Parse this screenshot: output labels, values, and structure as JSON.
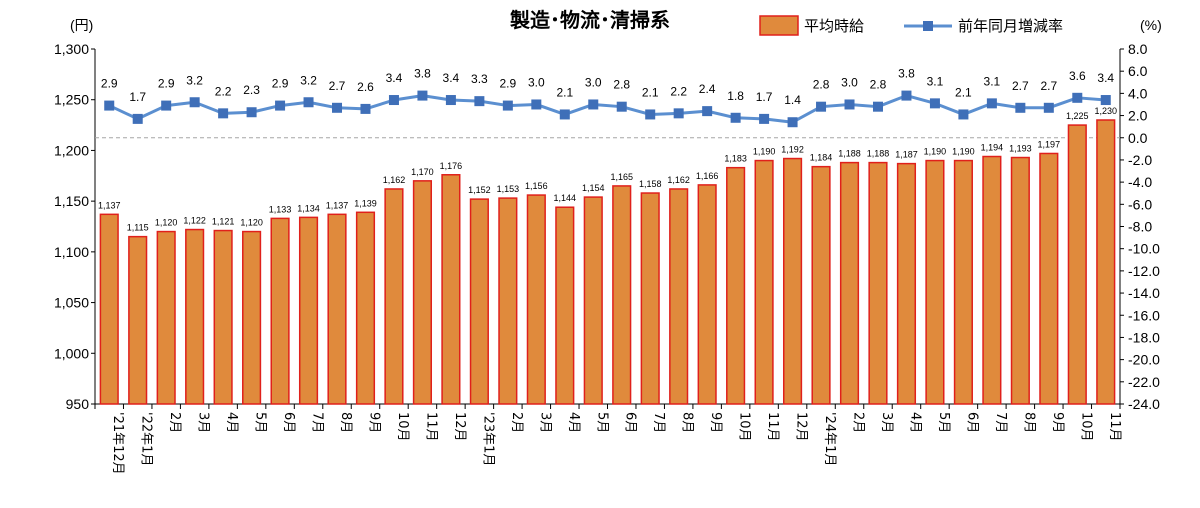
{
  "chart_data": {
    "type": "bar",
    "title": "製造･物流･清掃系",
    "left_unit": "(円)",
    "right_unit": "(%)",
    "categories": [
      "'21年12月",
      "'22年1月",
      "2月",
      "3月",
      "4月",
      "5月",
      "6月",
      "7月",
      "8月",
      "9月",
      "10月",
      "11月",
      "12月",
      "'23年1月",
      "2月",
      "3月",
      "4月",
      "5月",
      "6月",
      "7月",
      "8月",
      "9月",
      "10月",
      "11月",
      "12月",
      "'24年1月",
      "2月",
      "3月",
      "4月",
      "5月",
      "6月",
      "7月",
      "8月",
      "9月",
      "10月",
      "11月"
    ],
    "left_axis": {
      "ylim": [
        950,
        1300
      ],
      "ticks": [
        950,
        1000,
        1050,
        1100,
        1150,
        1200,
        1250,
        1300
      ],
      "tick_labels": [
        "950",
        "1,000",
        "1,050",
        "1,100",
        "1,150",
        "1,200",
        "1,250",
        "1,300"
      ]
    },
    "right_axis": {
      "ylim": [
        -24.0,
        8.0
      ],
      "ticks": [
        -24,
        -22,
        -20,
        -18,
        -16,
        -14,
        -12,
        -10,
        -8,
        -6,
        -4,
        -2,
        0,
        2,
        4,
        6,
        8
      ],
      "tick_labels": [
        "-24.0",
        "-22.0",
        "-20.0",
        "-18.0",
        "-16.0",
        "-14.0",
        "-12.0",
        "-10.0",
        "-8.0",
        "-6.0",
        "-4.0",
        "-2.0",
        "0.0",
        "2.0",
        "4.0",
        "6.0",
        "8.0"
      ]
    },
    "series": [
      {
        "name": "平均時給",
        "type": "bar",
        "axis": "left",
        "color": "#E08A3C",
        "edge_color": "#E0201B",
        "values": [
          1137,
          1115,
          1120,
          1122,
          1121,
          1120,
          1133,
          1134,
          1137,
          1139,
          1162,
          1170,
          1176,
          1152,
          1153,
          1156,
          1144,
          1154,
          1165,
          1158,
          1162,
          1166,
          1183,
          1190,
          1192,
          1184,
          1188,
          1188,
          1187,
          1190,
          1190,
          1194,
          1193,
          1197,
          1225,
          1230
        ],
        "labels": [
          "1,137",
          "1,115",
          "1,120",
          "1,122",
          "1,121",
          "1,120",
          "1,133",
          "1,134",
          "1,137",
          "1,139",
          "1,162",
          "1,170",
          "1,176",
          "1,152",
          "1,153",
          "1,156",
          "1,144",
          "1,154",
          "1,165",
          "1,158",
          "1,162",
          "1,166",
          "1,183",
          "1,190",
          "1,192",
          "1,184",
          "1,188",
          "1,188",
          "1,187",
          "1,190",
          "1,190",
          "1,194",
          "1,193",
          "1,197",
          "1,225",
          "1,230"
        ]
      },
      {
        "name": "前年同月増減率",
        "type": "line",
        "axis": "right",
        "color": "#5B8FD0",
        "marker_color": "#3F6FB8",
        "values": [
          2.9,
          1.7,
          2.9,
          3.2,
          2.2,
          2.3,
          2.9,
          3.2,
          2.7,
          2.6,
          3.4,
          3.8,
          3.4,
          3.3,
          2.9,
          3.0,
          2.1,
          3.0,
          2.8,
          2.1,
          2.2,
          2.4,
          1.8,
          1.7,
          1.4,
          2.8,
          3.0,
          2.8,
          3.8,
          3.1,
          2.1,
          3.1,
          2.7,
          2.7,
          3.6,
          3.4
        ],
        "labels": [
          "2.9",
          "1.7",
          "2.9",
          "3.2",
          "2.2",
          "2.3",
          "2.9",
          "3.2",
          "2.7",
          "2.6",
          "3.4",
          "3.8",
          "3.4",
          "3.3",
          "2.9",
          "3.0",
          "2.1",
          "3.0",
          "2.8",
          "2.1",
          "2.2",
          "2.4",
          "1.8",
          "1.7",
          "1.4",
          "2.8",
          "3.0",
          "2.8",
          "3.8",
          "3.1",
          "2.1",
          "3.1",
          "2.7",
          "2.7",
          "3.6",
          "3.4"
        ]
      }
    ],
    "zero_reference_line": {
      "axis": "right",
      "value": 0,
      "style": "dashed"
    },
    "grid": false,
    "legend_position": "top-right"
  }
}
